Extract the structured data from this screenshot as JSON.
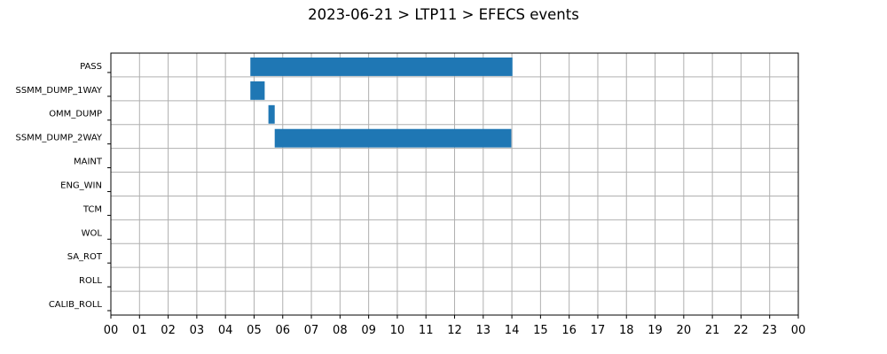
{
  "chart_data": {
    "type": "bar",
    "orientation": "horizontal",
    "title": "2023-06-21 > LTP11 > EFECS events",
    "xlabel": "",
    "ylabel": "",
    "xlim": [
      0,
      24
    ],
    "x_tick_labels": [
      "00",
      "01",
      "02",
      "03",
      "04",
      "05",
      "06",
      "07",
      "08",
      "09",
      "10",
      "11",
      "12",
      "13",
      "14",
      "15",
      "16",
      "17",
      "18",
      "19",
      "20",
      "21",
      "22",
      "23",
      "00"
    ],
    "categories": [
      "PASS",
      "SSMM_DUMP_1WAY",
      "OMM_DUMP",
      "SSMM_DUMP_2WAY",
      "MAINT",
      "ENG_WIN",
      "TCM",
      "WOL",
      "SA_ROT",
      "ROLL",
      "CALIB_ROLL"
    ],
    "grid": true,
    "bar_color": "#1f77b4",
    "events": [
      {
        "category": "PASS",
        "start": 4.87,
        "end": 14.02
      },
      {
        "category": "SSMM_DUMP_1WAY",
        "start": 4.87,
        "end": 5.37
      },
      {
        "category": "OMM_DUMP",
        "start": 5.5,
        "end": 5.72
      },
      {
        "category": "SSMM_DUMP_2WAY",
        "start": 5.72,
        "end": 13.98
      }
    ]
  }
}
